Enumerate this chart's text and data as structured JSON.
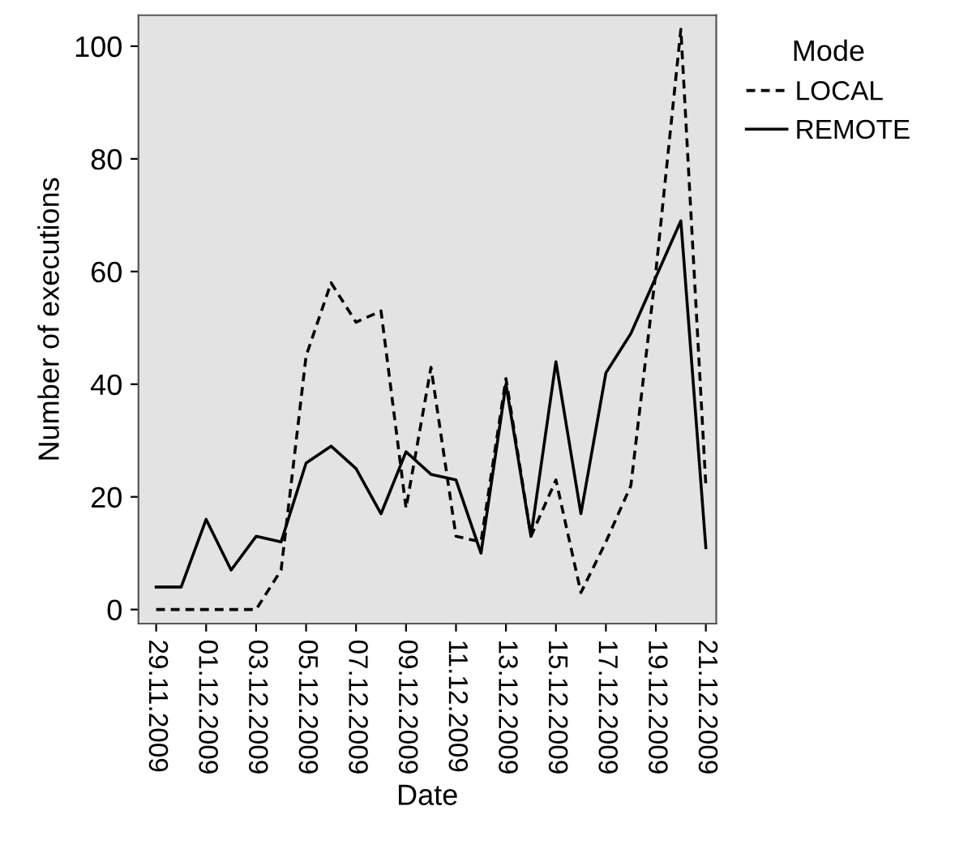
{
  "chart_data": {
    "type": "line",
    "xlabel": "Date",
    "ylabel": "Number of executions",
    "legend_title": "Mode",
    "legend": "right",
    "grid": false,
    "x": [
      "2009-11-29",
      "2009-11-30",
      "2009-12-01",
      "2009-12-02",
      "2009-12-03",
      "2009-12-04",
      "2009-12-05",
      "2009-12-06",
      "2009-12-07",
      "2009-12-08",
      "2009-12-09",
      "2009-12-10",
      "2009-12-11",
      "2009-12-12",
      "2009-12-13",
      "2009-12-14",
      "2009-12-15",
      "2009-12-16",
      "2009-12-17",
      "2009-12-18",
      "2009-12-19",
      "2009-12-20",
      "2009-12-21"
    ],
    "series": [
      {
        "name": "LOCAL",
        "color": "#000000",
        "line_style": "dashed",
        "values": [
          0,
          0,
          0,
          0,
          0,
          7,
          45,
          58,
          51,
          53,
          18,
          43,
          13,
          12,
          41,
          13,
          23,
          3,
          12,
          22,
          60,
          103,
          22
        ]
      },
      {
        "name": "REMOTE",
        "color": "#000000",
        "line_style": "solid",
        "values": [
          4,
          4,
          16,
          7,
          13,
          12,
          26,
          29,
          25,
          17,
          28,
          24,
          23,
          10,
          40,
          13,
          44,
          17,
          42,
          49,
          59,
          69,
          11
        ]
      }
    ],
    "xlim": [
      "2009-11-28T07:00",
      "2009-12-21T10:00"
    ],
    "xticks": [
      {
        "value": "2009-11-29",
        "label": "29.11.2009"
      },
      {
        "value": "2009-12-01",
        "label": "01.12.2009"
      },
      {
        "value": "2009-12-03",
        "label": "03.12.2009"
      },
      {
        "value": "2009-12-05",
        "label": "05.12.2009"
      },
      {
        "value": "2009-12-07",
        "label": "07.12.2009"
      },
      {
        "value": "2009-12-09",
        "label": "09.12.2009"
      },
      {
        "value": "2009-12-11",
        "label": "11.12.2009"
      },
      {
        "value": "2009-12-13",
        "label": "13.12.2009"
      },
      {
        "value": "2009-12-15",
        "label": "15.12.2009"
      },
      {
        "value": "2009-12-17",
        "label": "17.12.2009"
      },
      {
        "value": "2009-12-19",
        "label": "19.12.2009"
      },
      {
        "value": "2009-12-21",
        "label": "21.12.2009"
      }
    ],
    "ylim": [
      -2.5,
      105.5
    ],
    "yticks": [
      0,
      20,
      40,
      60,
      80,
      100
    ]
  }
}
